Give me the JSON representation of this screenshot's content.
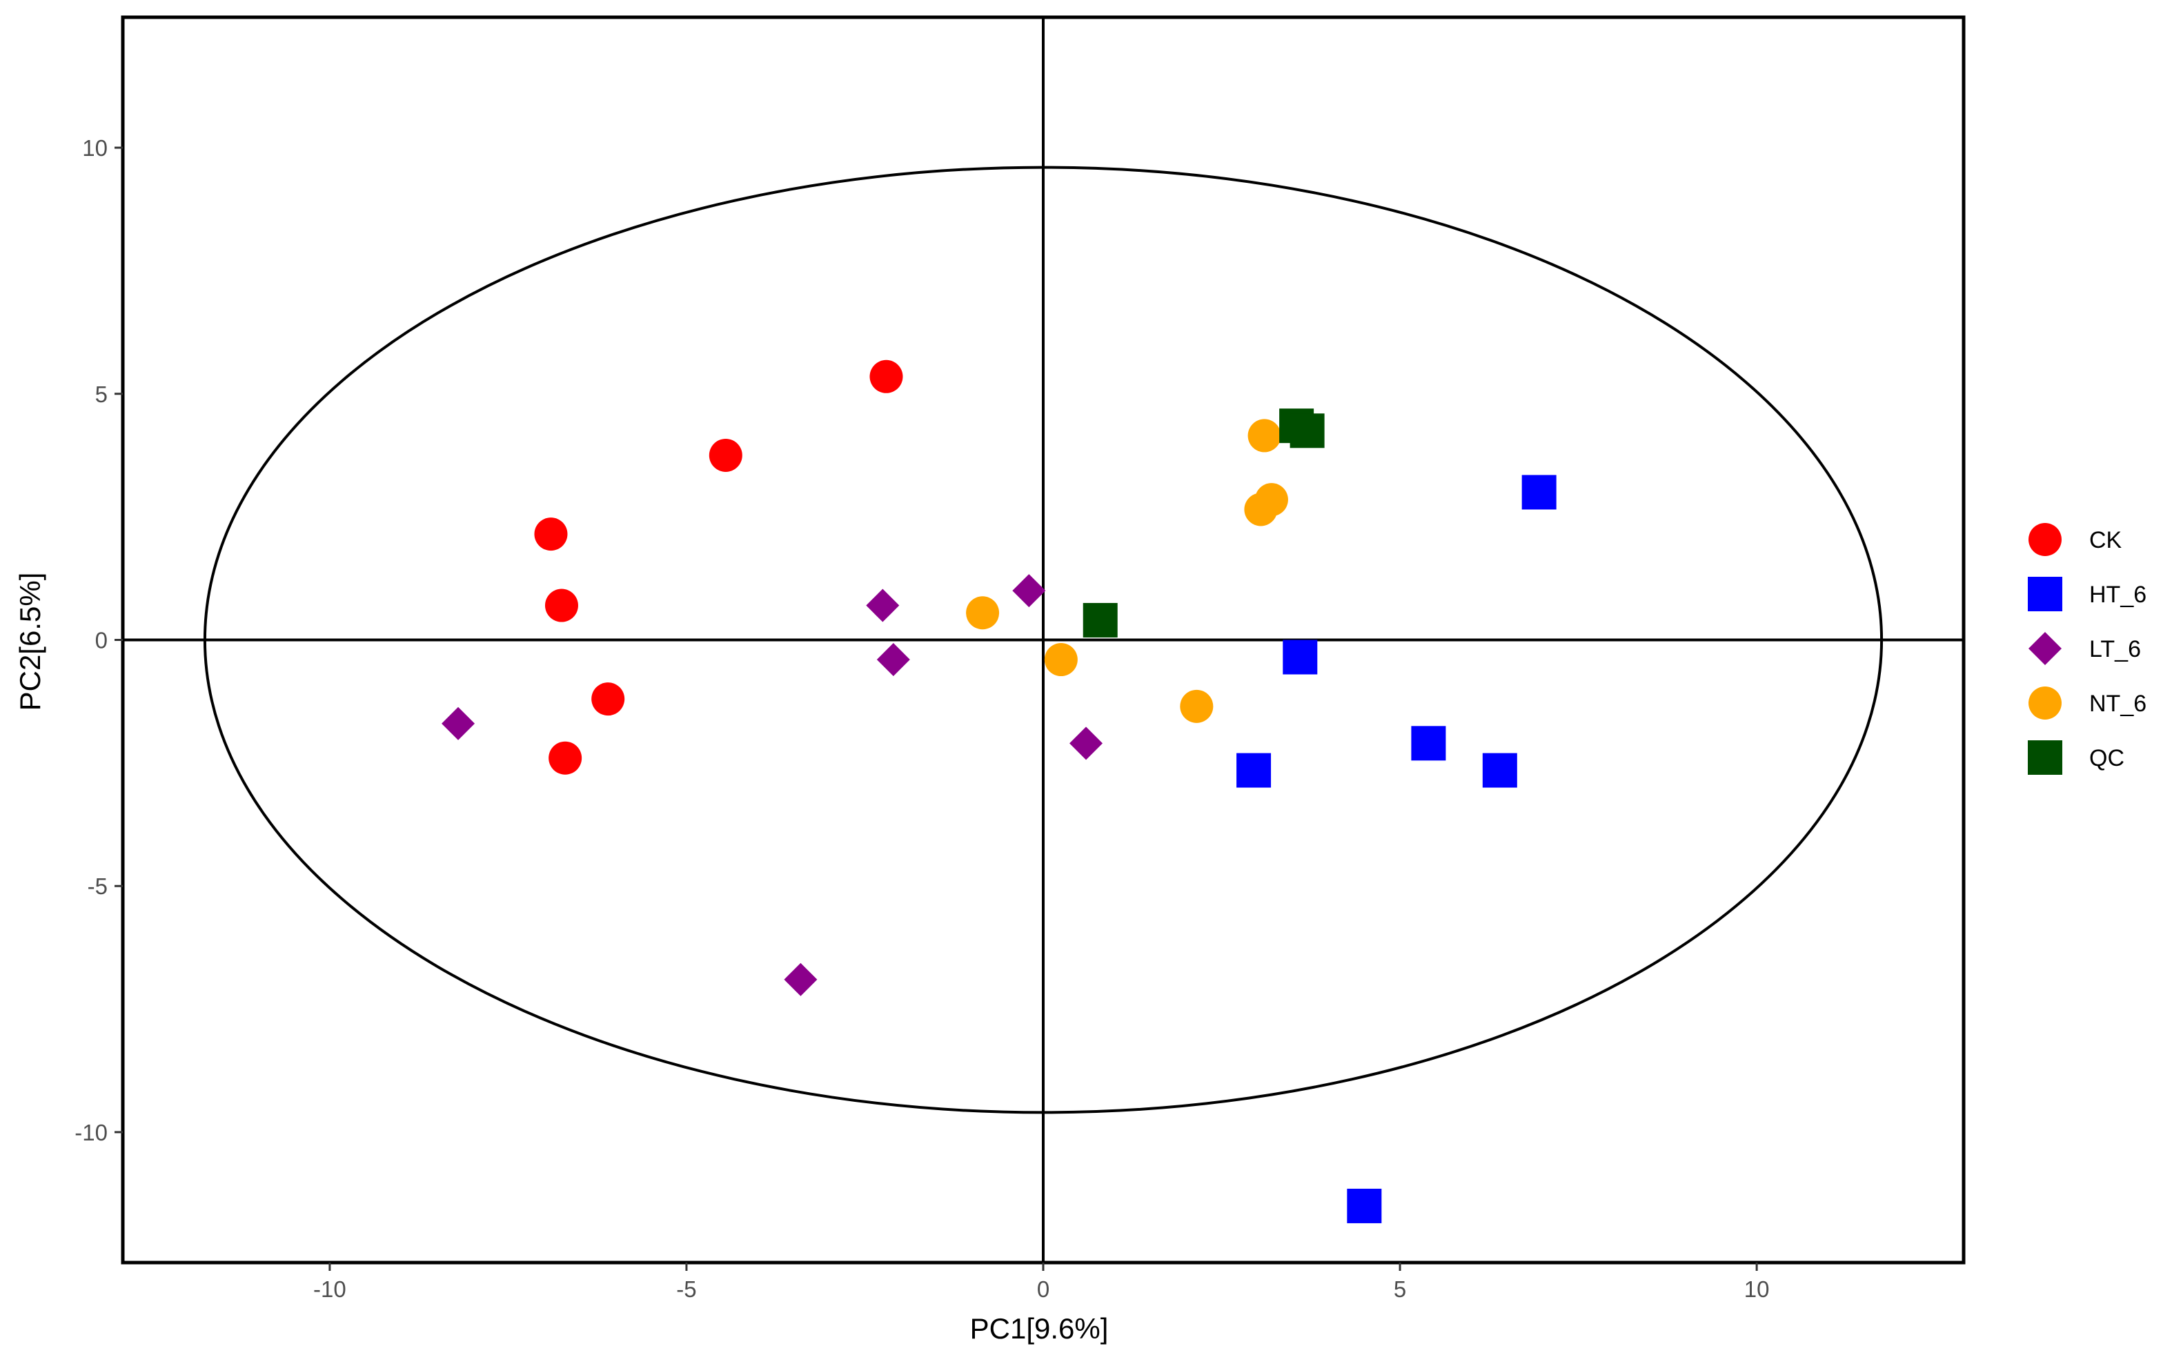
{
  "chart_data": {
    "type": "scatter",
    "title": "",
    "xlabel": "PC1[9.6%]",
    "ylabel": "PC2[6.5%]",
    "xlim": [
      -12.9,
      12.9
    ],
    "ylim": [
      -12.65,
      12.65
    ],
    "xticks": [
      -10,
      -5,
      0,
      5,
      10
    ],
    "yticks": [
      -10,
      -5,
      0,
      5,
      10
    ],
    "xtick_labels": [
      "-10",
      "-5",
      "0",
      "5",
      "10"
    ],
    "ytick_labels": [
      "-10",
      "-5",
      "0",
      "5",
      "10"
    ],
    "grid": false,
    "reference_lines": {
      "x": 0,
      "y": 0
    },
    "ellipse": {
      "center": [
        0,
        0
      ],
      "x_radius": 11.75,
      "y_radius": 9.6
    },
    "legend_position": "right",
    "series": [
      {
        "name": "CK",
        "marker": "circle",
        "color": "#FF0000",
        "points": [
          [
            -2.2,
            5.35
          ],
          [
            -4.45,
            3.75
          ],
          [
            -6.9,
            2.15
          ],
          [
            -6.75,
            0.7
          ],
          [
            -6.1,
            -1.2
          ],
          [
            -6.7,
            -2.4
          ]
        ]
      },
      {
        "name": "HT_6",
        "marker": "square",
        "color": "#0000FF",
        "points": [
          [
            6.95,
            3.0
          ],
          [
            3.6,
            -0.35
          ],
          [
            5.4,
            -2.1
          ],
          [
            6.4,
            -2.65
          ],
          [
            2.95,
            -2.65
          ],
          [
            4.5,
            -11.5
          ]
        ]
      },
      {
        "name": "LT_6",
        "marker": "diamond",
        "color": "#8B008B",
        "points": [
          [
            -0.2,
            1.0
          ],
          [
            -2.25,
            0.7
          ],
          [
            -2.1,
            -0.4
          ],
          [
            0.6,
            -2.1
          ],
          [
            -8.2,
            -1.7
          ],
          [
            -3.4,
            -6.9
          ]
        ]
      },
      {
        "name": "NT_6",
        "marker": "circle",
        "color": "#FFA500",
        "points": [
          [
            3.1,
            4.15
          ],
          [
            3.2,
            2.85
          ],
          [
            3.05,
            2.65
          ],
          [
            -0.85,
            0.55
          ],
          [
            0.25,
            -0.4
          ],
          [
            2.15,
            -1.35
          ]
        ]
      },
      {
        "name": "QC",
        "marker": "square",
        "color": "#004D00",
        "points": [
          [
            3.55,
            4.35
          ],
          [
            3.7,
            4.25
          ],
          [
            0.8,
            0.4
          ]
        ]
      }
    ]
  }
}
